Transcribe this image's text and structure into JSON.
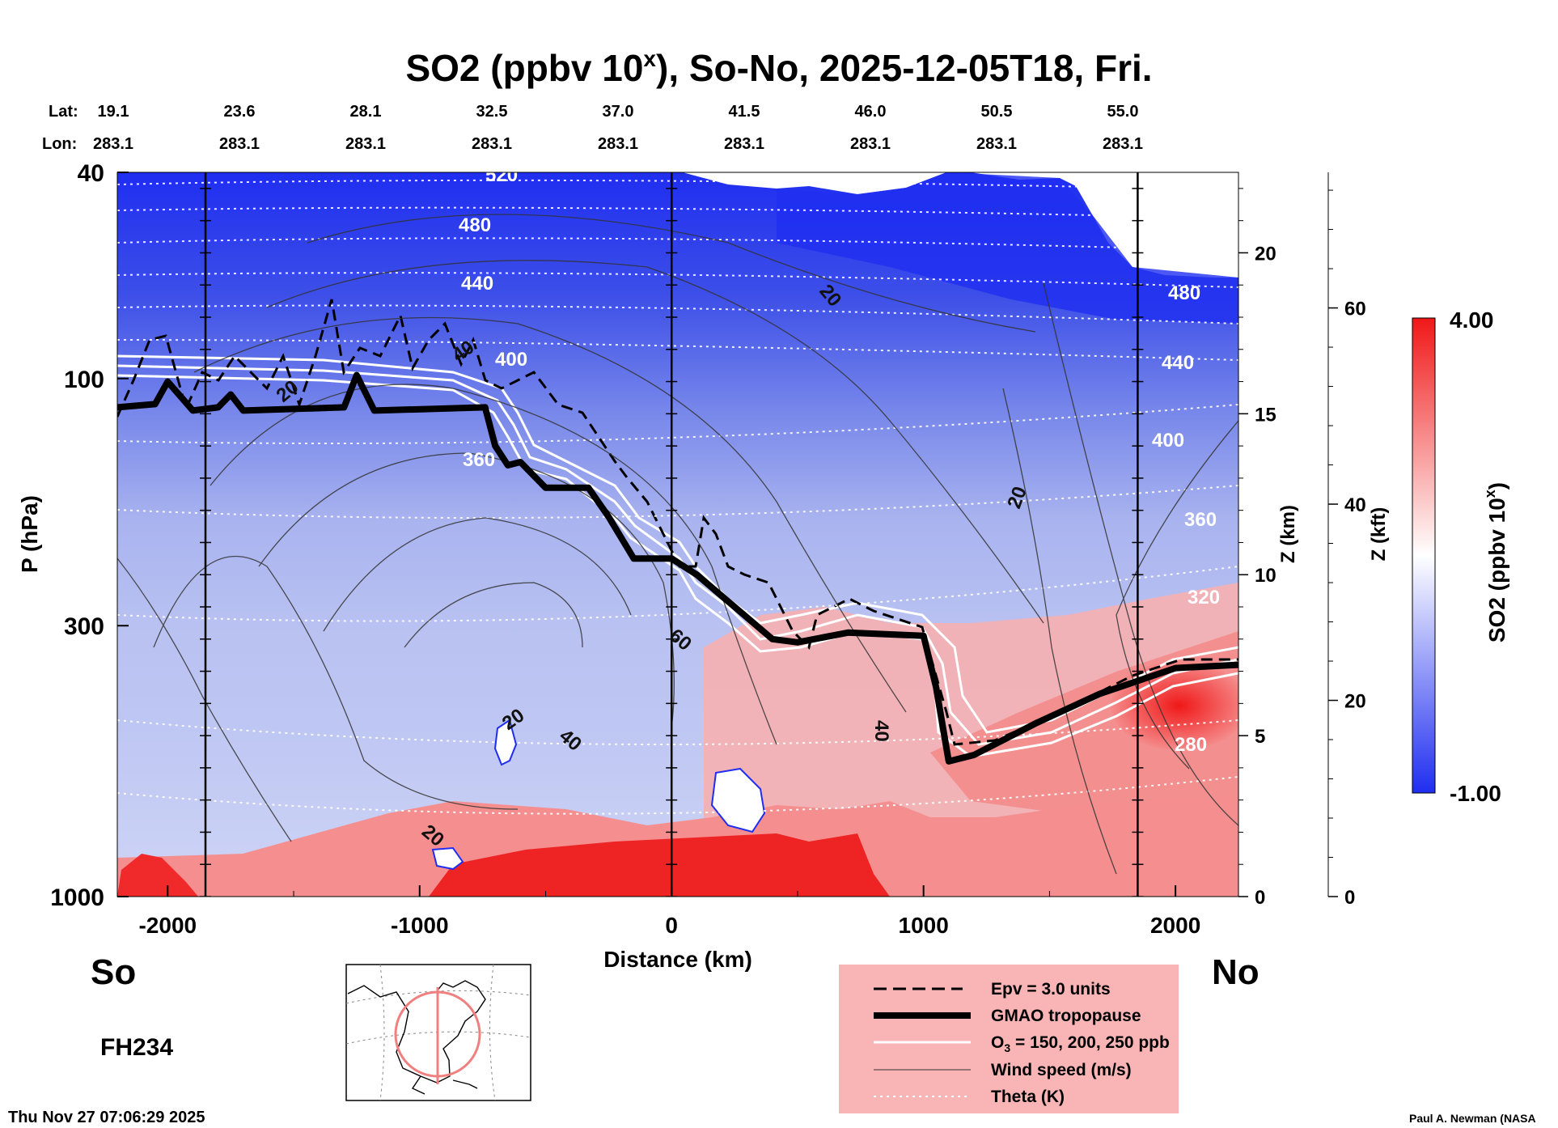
{
  "chart_data": {
    "type": "heatmap",
    "title_main": "SO2 (ppbv 10",
    "title_sup": "x",
    "title_rest": "), So-No, 2025-12-05T18, Fri.",
    "lat_label": "Lat:",
    "lon_label": "Lon:",
    "lat_ticks": [
      "19.1",
      "23.6",
      "28.1",
      "32.5",
      "37.0",
      "41.5",
      "46.0",
      "50.5",
      "55.0"
    ],
    "lon_ticks": [
      "283.1",
      "283.1",
      "283.1",
      "283.1",
      "283.1",
      "283.1",
      "283.1",
      "283.1",
      "283.1"
    ],
    "xlabel": "Distance (km)",
    "ylabel": "P (hPa)",
    "xlim": [
      -2200,
      2250
    ],
    "x_ticks": [
      -2000,
      -1000,
      0,
      1000,
      2000
    ],
    "x_tick_labels": [
      "-2000",
      "-1000",
      "0",
      "1000",
      "2000"
    ],
    "ylim": [
      1000,
      40
    ],
    "y_ticks": [
      40,
      100,
      300,
      1000
    ],
    "y_tick_labels": [
      "40",
      "100",
      "300",
      "1000"
    ],
    "z_km_label": "Z (km)",
    "z_km_ticks": [
      0,
      5,
      10,
      15,
      20
    ],
    "z_km_tick_labels": [
      "0",
      "5",
      "10",
      "15",
      "20"
    ],
    "z_kft_label": "Z (kft)",
    "z_kft_ticks": [
      0,
      20,
      40,
      60
    ],
    "z_kft_tick_labels": [
      "0",
      "20",
      "40",
      "60"
    ],
    "vertical_markers_km": [
      -1850,
      0,
      1850
    ],
    "colorbar": {
      "label_main": "SO2 (ppbv 10",
      "label_sup": "x",
      "label_end": ")",
      "max_label": "4.00",
      "min_label": "-1.00",
      "min": -1.0,
      "max": 4.0,
      "color_low": "#1f2ef0",
      "color_mid": "#ffffff",
      "color_high": "#f01818"
    },
    "theta_labels": [
      "520",
      "480",
      "440",
      "400",
      "360",
      "480",
      "440",
      "400",
      "360",
      "320",
      "280"
    ],
    "wind_labels": [
      "20",
      "20",
      "40",
      "20",
      "60",
      "40",
      "20",
      "40",
      "20"
    ],
    "tropopause_km": [
      {
        "x": -2200,
        "z": 15.2
      },
      {
        "x": -2050,
        "z": 15.3
      },
      {
        "x": -2000,
        "z": 16.0
      },
      {
        "x": -1900,
        "z": 15.1
      },
      {
        "x": -1800,
        "z": 15.2
      },
      {
        "x": -1750,
        "z": 15.6
      },
      {
        "x": -1700,
        "z": 15.1
      },
      {
        "x": -1300,
        "z": 15.2
      },
      {
        "x": -1250,
        "z": 16.2
      },
      {
        "x": -1180,
        "z": 15.1
      },
      {
        "x": -740,
        "z": 15.2
      },
      {
        "x": -700,
        "z": 14.0
      },
      {
        "x": -650,
        "z": 13.4
      },
      {
        "x": -600,
        "z": 13.5
      },
      {
        "x": -500,
        "z": 12.7
      },
      {
        "x": -330,
        "z": 12.7
      },
      {
        "x": -250,
        "z": 11.8
      },
      {
        "x": -150,
        "z": 10.5
      },
      {
        "x": 0,
        "z": 10.5
      },
      {
        "x": 100,
        "z": 10.0
      },
      {
        "x": 250,
        "z": 9.0
      },
      {
        "x": 400,
        "z": 8.0
      },
      {
        "x": 500,
        "z": 7.9
      },
      {
        "x": 700,
        "z": 8.2
      },
      {
        "x": 1000,
        "z": 8.1
      },
      {
        "x": 1050,
        "z": 6.5
      },
      {
        "x": 1100,
        "z": 4.2
      },
      {
        "x": 1200,
        "z": 4.4
      },
      {
        "x": 1450,
        "z": 5.4
      },
      {
        "x": 1700,
        "z": 6.3
      },
      {
        "x": 2000,
        "z": 7.1
      },
      {
        "x": 2250,
        "z": 7.2
      }
    ],
    "legend": [
      {
        "style": "dashed",
        "label": "Epv = 3.0 units"
      },
      {
        "style": "thick",
        "label": "GMAO tropopause"
      },
      {
        "style": "white",
        "label_pre": "O",
        "label_sub": "3",
        "label_post": " = 150, 200, 250 ppb"
      },
      {
        "style": "thin",
        "label": "Wind speed (m/s)"
      },
      {
        "style": "dotted",
        "label": "Theta (K)"
      }
    ],
    "legend_bg": "#f9b5b5"
  },
  "labels": {
    "south": "So",
    "north": "No",
    "forecast_hour": "FH234",
    "timestamp": "Thu Nov 27 07:06:29 2025",
    "credit": "Paul A. Newman (NASA"
  },
  "map": {
    "circle_color": "#f08080"
  }
}
